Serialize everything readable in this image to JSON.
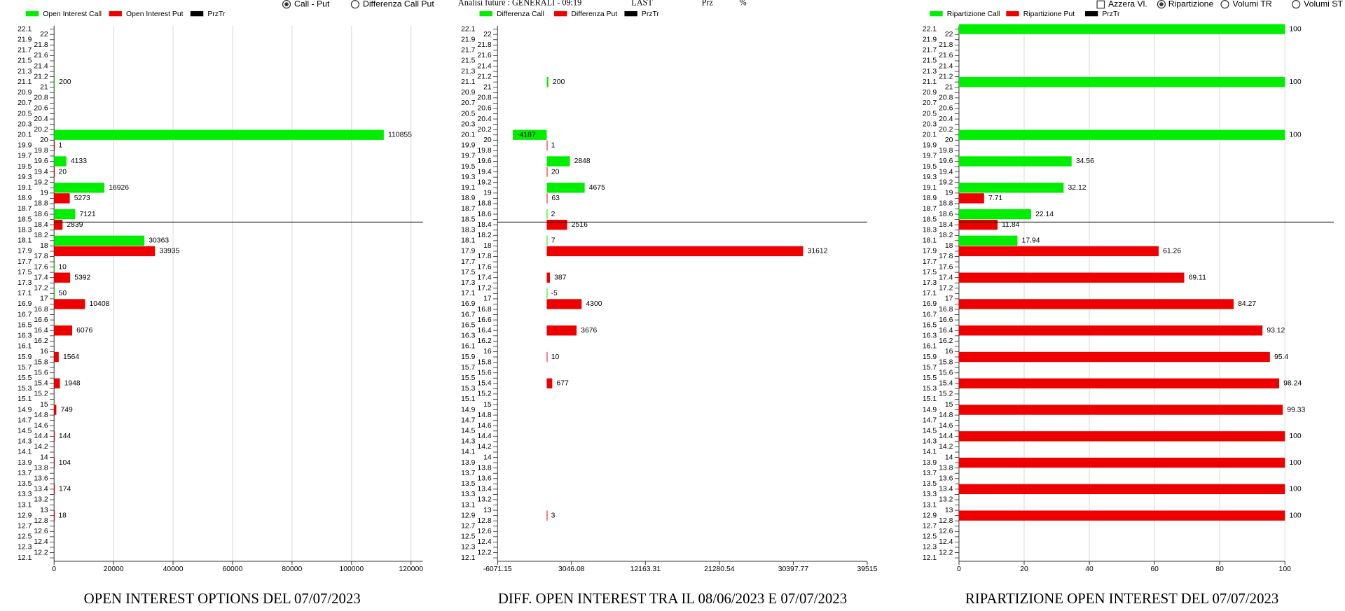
{
  "header": {
    "title": "Analisi future : GENERALI - 09:19",
    "last": "LAST",
    "prz": "Prz",
    "pct": "%"
  },
  "controls": {
    "left_radios": [
      "Call - Put",
      "Differenza Call Put"
    ],
    "checkbox": "Azzera Vl.",
    "right_radios": [
      "Ripartizione",
      "Volumi TR",
      "Volumi ST"
    ]
  },
  "chart_data": [
    {
      "type": "bar",
      "orientation": "horizontal",
      "title": "OPEN INTEREST OPTIONS DEL 07/07/2023",
      "categories": [
        22,
        21,
        20,
        19.5,
        19,
        18.5,
        18,
        17.5,
        17,
        16.5,
        16,
        15.5,
        15,
        14.5,
        14,
        13.5,
        13
      ],
      "series": [
        {
          "name": "Open Interest Call",
          "color": "#00ee00",
          "values": [
            null,
            200,
            110855,
            4133,
            16926,
            7121,
            30363,
            10,
            50,
            null,
            null,
            null,
            null,
            null,
            null,
            null,
            null
          ]
        },
        {
          "name": "Open Interest Put",
          "color": "#ee0000",
          "values": [
            null,
            null,
            1,
            20,
            5273,
            2839,
            33935,
            5392,
            10408,
            6076,
            1564,
            1948,
            749,
            144,
            104,
            174,
            18
          ]
        }
      ],
      "price_line": {
        "name": "PrzTr",
        "color": "#000000",
        "value": 18.45
      },
      "xlim": [
        0,
        124000
      ],
      "xticks": [
        0,
        20000,
        40000,
        60000,
        80000,
        100000,
        120000
      ],
      "ylim": [
        12.1,
        22.1
      ],
      "yticks": [
        22.1,
        22,
        21.9,
        21.8,
        21.7,
        21.6,
        21.5,
        21.4,
        21.3,
        21.2,
        21.1,
        21,
        20.9,
        20.8,
        20.7,
        20.6,
        20.5,
        20.4,
        20.3,
        20.2,
        20.1,
        20,
        19.9,
        19.8,
        19.7,
        19.6,
        19.5,
        19.4,
        19.3,
        19.2,
        19.1,
        19,
        18.9,
        18.8,
        18.7,
        18.6,
        18.5,
        18.4,
        18.3,
        18.2,
        18.1,
        18,
        17.9,
        17.8,
        17.7,
        17.6,
        17.5,
        17.4,
        17.3,
        17.2,
        17.1,
        17,
        16.9,
        16.8,
        16.7,
        16.6,
        16.5,
        16.4,
        16.3,
        16.2,
        16.1,
        16,
        15.9,
        15.8,
        15.7,
        15.6,
        15.5,
        15.4,
        15.3,
        15.2,
        15.1,
        15,
        14.9,
        14.8,
        14.7,
        14.6,
        14.5,
        14.4,
        14.3,
        14.2,
        14.1,
        14,
        13.9,
        13.8,
        13.7,
        13.6,
        13.5,
        13.4,
        13.3,
        13.2,
        13.1,
        13,
        12.9,
        12.8,
        12.7,
        12.6,
        12.5,
        12.4,
        12.3,
        12.2,
        12.1
      ],
      "grid": true
    },
    {
      "type": "bar",
      "orientation": "horizontal",
      "title": "DIFF. OPEN INTEREST TRA IL 08/06/2023 E 07/07/2023",
      "categories": [
        22,
        21,
        20,
        19.5,
        19,
        18.5,
        18,
        17.5,
        17,
        16.5,
        16,
        15.5,
        15,
        14.5,
        14,
        13.5,
        13
      ],
      "series": [
        {
          "name": "Differenza Call",
          "color": "#00ee00",
          "values": [
            null,
            200,
            -4187,
            2848,
            4675,
            2,
            7,
            null,
            -5,
            null,
            null,
            null,
            null,
            null,
            null,
            null,
            null
          ]
        },
        {
          "name": "Differenza Put",
          "color": "#ee0000",
          "values": [
            null,
            null,
            1,
            20,
            63,
            2516,
            31612,
            387,
            4300,
            3676,
            10,
            677,
            null,
            null,
            null,
            null,
            3
          ]
        }
      ],
      "price_line": {
        "name": "PrzTr",
        "color": "#000000",
        "value": 18.45
      },
      "xlim": [
        -6071.15,
        39515
      ],
      "xticks": [
        -6071.15,
        3046.08,
        12163.31,
        21280.54,
        30397.77,
        39515
      ],
      "ylim": [
        12.1,
        22.1
      ],
      "yticks": [
        22.1,
        22,
        21.9,
        21.8,
        21.7,
        21.6,
        21.5,
        21.4,
        21.3,
        21.2,
        21.1,
        21,
        20.9,
        20.8,
        20.7,
        20.6,
        20.5,
        20.4,
        20.3,
        20.2,
        20.1,
        20,
        19.9,
        19.8,
        19.7,
        19.6,
        19.5,
        19.4,
        19.3,
        19.2,
        19.1,
        19,
        18.9,
        18.8,
        18.7,
        18.6,
        18.5,
        18.4,
        18.3,
        18.2,
        18.1,
        18,
        17.9,
        17.8,
        17.7,
        17.6,
        17.5,
        17.4,
        17.3,
        17.2,
        17.1,
        17,
        16.9,
        16.8,
        16.7,
        16.6,
        16.5,
        16.4,
        16.3,
        16.2,
        16.1,
        16,
        15.9,
        15.8,
        15.7,
        15.6,
        15.5,
        15.4,
        15.3,
        15.2,
        15.1,
        15,
        14.9,
        14.8,
        14.7,
        14.6,
        14.5,
        14.4,
        14.3,
        14.2,
        14.1,
        14,
        13.9,
        13.8,
        13.7,
        13.6,
        13.5,
        13.4,
        13.3,
        13.2,
        13.1,
        13,
        12.9,
        12.8,
        12.7,
        12.6,
        12.5,
        12.4,
        12.3,
        12.2,
        12.1
      ],
      "grid": false
    },
    {
      "type": "bar",
      "orientation": "horizontal",
      "title": "RIPARTIZIONE OPEN INTEREST DEL 07/07/2023",
      "categories": [
        22,
        21,
        20,
        19.5,
        19,
        18.5,
        18,
        17.5,
        17,
        16.5,
        16,
        15.5,
        15,
        14.5,
        14,
        13.5,
        13
      ],
      "series": [
        {
          "name": "Ripartizione Call",
          "color": "#00ee00",
          "values": [
            100,
            100,
            100,
            34.56,
            32.12,
            22.14,
            17.94,
            null,
            null,
            null,
            null,
            null,
            null,
            null,
            null,
            null,
            null
          ]
        },
        {
          "name": "Ripartizione Put",
          "color": "#ee0000",
          "values": [
            null,
            null,
            null,
            null,
            7.71,
            11.84,
            61.26,
            69.11,
            84.27,
            93.12,
            95.4,
            98.24,
            99.33,
            100,
            100,
            100,
            100
          ]
        }
      ],
      "price_line": {
        "name": "PrzTr",
        "color": "#000000",
        "value": 18.45
      },
      "xlim": [
        0,
        100
      ],
      "xticks": [
        0,
        20,
        40,
        60,
        80,
        100
      ],
      "ylim": [
        12.1,
        22.1
      ],
      "yticks": [
        22.1,
        22,
        21.9,
        21.8,
        21.7,
        21.6,
        21.5,
        21.4,
        21.3,
        21.2,
        21.1,
        21,
        20.9,
        20.8,
        20.7,
        20.6,
        20.5,
        20.4,
        20.3,
        20.2,
        20.1,
        20,
        19.9,
        19.8,
        19.7,
        19.6,
        19.5,
        19.4,
        19.3,
        19.2,
        19.1,
        19,
        18.9,
        18.8,
        18.7,
        18.6,
        18.5,
        18.4,
        18.3,
        18.2,
        18.1,
        18,
        17.9,
        17.8,
        17.7,
        17.6,
        17.5,
        17.4,
        17.3,
        17.2,
        17.1,
        17,
        16.9,
        16.8,
        16.7,
        16.6,
        16.5,
        16.4,
        16.3,
        16.2,
        16.1,
        16,
        15.9,
        15.8,
        15.7,
        15.6,
        15.5,
        15.4,
        15.3,
        15.2,
        15.1,
        15,
        14.9,
        14.8,
        14.7,
        14.6,
        14.5,
        14.4,
        14.3,
        14.2,
        14.1,
        14,
        13.9,
        13.8,
        13.7,
        13.6,
        13.5,
        13.4,
        13.3,
        13.2,
        13.1,
        13,
        12.9,
        12.8,
        12.7,
        12.6,
        12.5,
        12.4,
        12.3,
        12.2,
        12.1
      ],
      "grid": true
    }
  ]
}
